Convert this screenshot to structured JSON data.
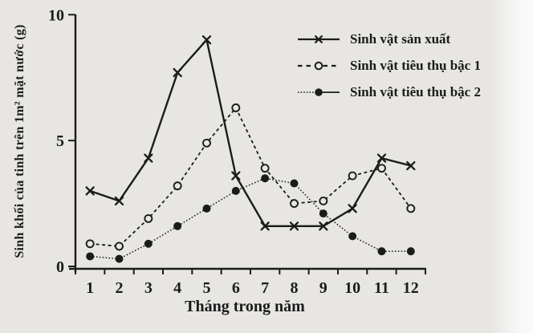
{
  "figure": {
    "background": "#e7e6e3",
    "ink": "#1b1b1b"
  },
  "chart_data": {
    "type": "line",
    "title": "",
    "xlabel": "Tháng trong năm",
    "ylabel": "Sinh khối của tinh trên 1m² mặt nước (g)",
    "categories": [
      "1",
      "2",
      "3",
      "4",
      "5",
      "6",
      "7",
      "8",
      "9",
      "10",
      "11",
      "12"
    ],
    "ylim": [
      0,
      10
    ],
    "yticks": [
      0,
      5,
      10
    ],
    "grid": false,
    "legend_position": "top-right",
    "series": [
      {
        "name": "Sinh vật sản xuất",
        "marker": "x-cross",
        "line": "solid",
        "values": [
          3.0,
          2.6,
          4.3,
          7.7,
          9.0,
          3.6,
          1.6,
          1.6,
          1.6,
          2.3,
          4.3,
          4.0
        ]
      },
      {
        "name": "Sinh vật tiêu thụ bậc 1",
        "marker": "open-circle",
        "line": "dashed",
        "values": [
          0.9,
          0.8,
          1.9,
          3.2,
          4.9,
          6.3,
          3.9,
          2.5,
          2.6,
          3.6,
          3.9,
          2.3
        ]
      },
      {
        "name": "Sinh vật tiêu thụ bậc 2",
        "marker": "filled-circle",
        "line": "dotted",
        "values": [
          0.4,
          0.3,
          0.9,
          1.6,
          2.3,
          3.0,
          3.5,
          3.3,
          2.1,
          1.2,
          0.6,
          0.6
        ]
      }
    ]
  }
}
